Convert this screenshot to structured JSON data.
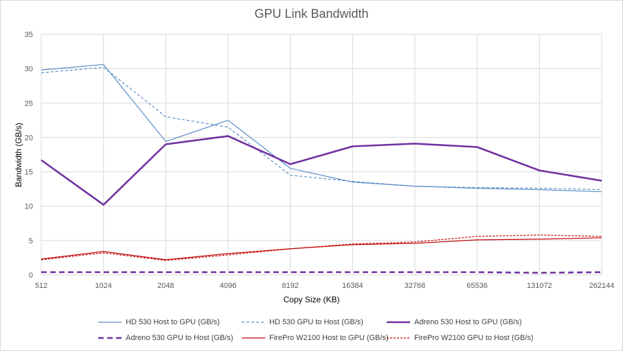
{
  "chart_data": {
    "type": "line",
    "title": "GPU Link Bandwidth",
    "xlabel": "Copy Size (KB)",
    "ylabel": "Bandwidth (GB/s)",
    "categories": [
      "512",
      "1024",
      "2048",
      "4096",
      "8192",
      "16384",
      "32768",
      "65536",
      "131072",
      "262144"
    ],
    "ylim": [
      0,
      35
    ],
    "yticks": [
      "0",
      "5",
      "10",
      "15",
      "20",
      "25",
      "30",
      "35"
    ],
    "grid": "vertical and horizontal",
    "legend_position": "bottom",
    "series": [
      {
        "name": "HD 530 Host to GPU (GB/s)",
        "color": "#5b8cc8",
        "dash": "solid",
        "width": "thin",
        "values": [
          29.8,
          30.6,
          19.4,
          22.5,
          15.5,
          13.5,
          12.9,
          12.6,
          12.4,
          12.1
        ]
      },
      {
        "name": "HD 530 GPU to Host (GB/s)",
        "color": "#5b8cc8",
        "dash": "dashed",
        "width": "thin",
        "values": [
          29.4,
          30.2,
          23.0,
          21.5,
          14.5,
          13.6,
          12.9,
          12.7,
          12.6,
          12.4
        ]
      },
      {
        "name": "Adreno 530 Host to GPU (GB/s)",
        "color": "#7030a0",
        "dash": "solid",
        "width": "thick",
        "values": [
          16.7,
          10.2,
          19.0,
          20.2,
          16.1,
          18.7,
          19.1,
          18.6,
          15.2,
          13.7
        ]
      },
      {
        "name": "Adreno 530 GPU to Host (GB/s)",
        "color": "#7030a0",
        "dash": "dashed",
        "width": "thick",
        "values": [
          0.4,
          0.4,
          0.4,
          0.4,
          0.4,
          0.4,
          0.4,
          0.4,
          0.3,
          0.4
        ]
      },
      {
        "name": "FirePro W2100 Host to GPU (GB/s)",
        "color": "#c00000",
        "dash": "solid",
        "width": "thin",
        "values": [
          2.3,
          3.4,
          2.2,
          3.1,
          3.8,
          4.4,
          4.6,
          5.1,
          5.2,
          5.4
        ]
      },
      {
        "name": "FirePro W2100 GPU to Host (GB/s)",
        "color": "#c00000",
        "dash": "dashed",
        "width": "thin",
        "values": [
          2.2,
          3.2,
          2.1,
          2.9,
          3.8,
          4.5,
          4.8,
          5.6,
          5.8,
          5.6
        ]
      }
    ]
  }
}
